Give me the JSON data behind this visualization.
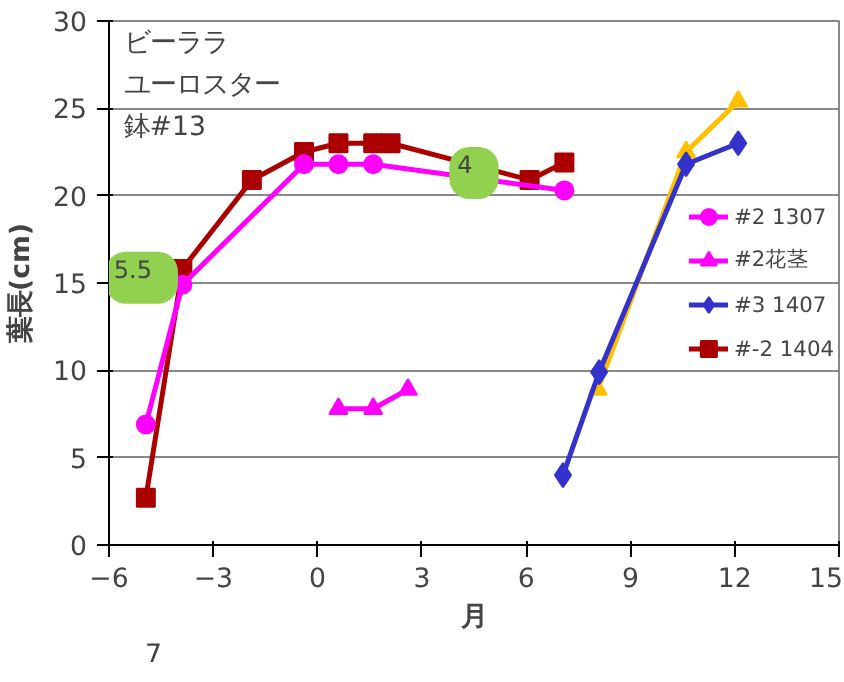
{
  "chart_data": {
    "type": "line",
    "xlabel": "月",
    "ylabel": "葉長(cm)",
    "xlim": [
      -6,
      15
    ],
    "xticks": [
      -6,
      -3,
      0,
      3,
      6,
      9,
      12,
      15
    ],
    "ylim": [
      0,
      30
    ],
    "yticks": [
      0,
      5,
      10,
      15,
      20,
      25,
      30
    ],
    "grid": "y",
    "legend": "right",
    "annotations": [
      "ビーララ",
      "ユーロスター",
      "鉢#13",
      "5.5",
      "4",
      "7"
    ],
    "series": [
      {
        "name": "#2 1307",
        "color": "#ff00ff",
        "marker": "circle",
        "x": [
          -4.94,
          -3.89,
          -0.39,
          0.6,
          1.6,
          7.1
        ],
        "values": [
          6.9,
          14.9,
          21.8,
          21.8,
          21.8,
          20.3
        ]
      },
      {
        "name": "#2花茎",
        "color": "#ff00ff",
        "marker": "triangle",
        "x": [
          0.6,
          1.6,
          2.6
        ],
        "values": [
          7.8,
          7.8,
          8.9
        ]
      },
      {
        "name": "#3 1407",
        "color": "#3333cc",
        "marker": "diamond",
        "x": [
          7.06,
          8.1,
          10.6,
          12.1
        ],
        "values": [
          4.0,
          9.9,
          21.8,
          23.0
        ]
      },
      {
        "name": "#-2 1404",
        "color": "#aa0000",
        "marker": "square",
        "x": [
          -4.94,
          -3.89,
          -1.89,
          -0.39,
          0.6,
          1.6,
          2.1,
          6.1,
          7.1
        ],
        "values": [
          2.7,
          15.8,
          20.9,
          22.5,
          23.0,
          23.0,
          23.0,
          20.9,
          21.9
        ]
      },
      {
        "color": "#ffc000",
        "marker": "triangle",
        "x": [
          8.06,
          10.6,
          12.1
        ],
        "values": [
          8.9,
          22.5,
          25.4
        ]
      }
    ]
  }
}
